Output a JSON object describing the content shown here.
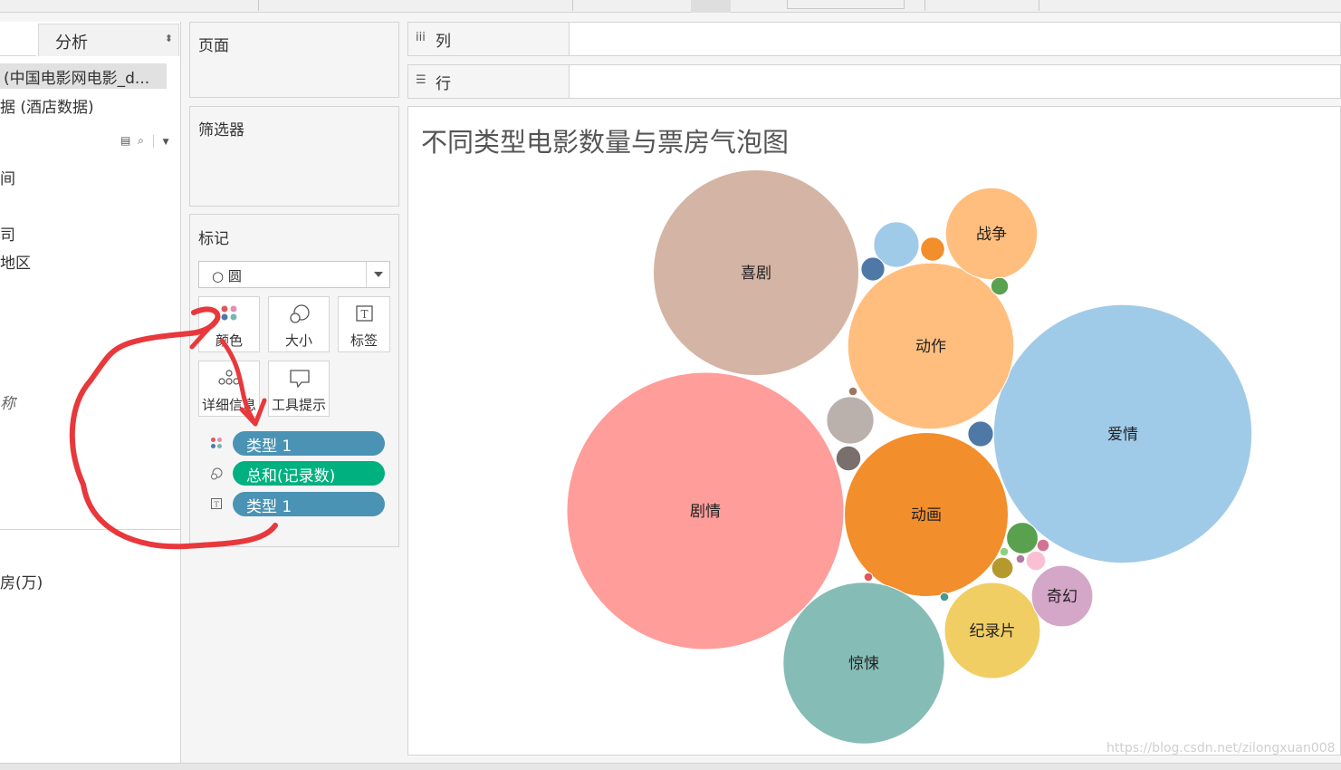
{
  "data_pane": {
    "analysis_tab": "分析",
    "datasources": [
      "(中国电影网电影_d...",
      "据 (酒店数据)"
    ],
    "fields": [
      "间",
      "司",
      "地区",
      "称",
      "房(万)"
    ]
  },
  "shelves": {
    "pages": "页面",
    "filters": "筛选器",
    "marks": "标记",
    "columns": "列",
    "rows": "行"
  },
  "marks": {
    "mark_type": "○ 圆",
    "buttons": {
      "color": "颜色",
      "size": "大小",
      "label": "标签",
      "detail": "详细信息",
      "tooltip": "工具提示"
    },
    "pills": [
      {
        "role": "color",
        "text": "类型   1",
        "bg": "#4a93b4"
      },
      {
        "role": "size",
        "text": "总和(记录数)",
        "bg": "#00b180"
      },
      {
        "role": "label",
        "text": "类型   1",
        "bg": "#4a93b4"
      }
    ]
  },
  "view": {
    "title": "不同类型电影数量与票房气泡图",
    "watermark": "https://blog.csdn.net/zilongxuan008"
  },
  "colors": {
    "pill_blue": "#4a93b4",
    "pill_green": "#00b180",
    "annotation_red": "#e8383c"
  },
  "chart_data": {
    "type": "bubble",
    "title": "不同类型电影数量与票房气泡图",
    "size_measure": "总和(记录数)",
    "color_dimension": "类型   1",
    "label_dimension": "类型   1",
    "bubbles": [
      {
        "label": "剧情",
        "relative_size": 1.0,
        "color": "#ff9d9a"
      },
      {
        "label": "爱情",
        "relative_size": 0.87,
        "color": "#a0cbe8"
      },
      {
        "label": "喜剧",
        "relative_size": 0.55,
        "color": "#d4b4a4"
      },
      {
        "label": "动作",
        "relative_size": 0.36,
        "color": "#ffbe7d"
      },
      {
        "label": "动画",
        "relative_size": 0.35,
        "color": "#f28e2b"
      },
      {
        "label": "惊悚",
        "relative_size": 0.34,
        "color": "#86bcb6"
      },
      {
        "label": "战争",
        "relative_size": 0.11,
        "color": "#ffbe7d"
      },
      {
        "label": "纪录片",
        "relative_size": 0.12,
        "color": "#f1ce63"
      },
      {
        "label": "奇幻",
        "relative_size": 0.049,
        "color": "#d4a6c8"
      },
      {
        "label": "",
        "relative_size": 0.029,
        "color": "#bab0ac"
      },
      {
        "label": "",
        "relative_size": 0.027,
        "color": "#a0cbe8"
      },
      {
        "label": "",
        "relative_size": 0.013,
        "color": "#59a14f"
      },
      {
        "label": "",
        "relative_size": 0.0085,
        "color": "#4e79a7"
      },
      {
        "label": "",
        "relative_size": 0.008,
        "color": "#79706e"
      },
      {
        "label": "",
        "relative_size": 0.0075,
        "color": "#f28e2b"
      },
      {
        "label": "",
        "relative_size": 0.0073,
        "color": "#4e79a7"
      },
      {
        "label": "",
        "relative_size": 0.006,
        "color": "#b6992d"
      },
      {
        "label": "",
        "relative_size": 0.005,
        "color": "#fabfd2"
      },
      {
        "label": "",
        "relative_size": 0.004,
        "color": "#59a14f"
      },
      {
        "label": "",
        "relative_size": 0.002,
        "color": "#d37295"
      },
      {
        "label": "",
        "relative_size": 0.001,
        "color": "#9d7660"
      },
      {
        "label": "",
        "relative_size": 0.001,
        "color": "#e15759"
      },
      {
        "label": "",
        "relative_size": 0.001,
        "color": "#499894"
      },
      {
        "label": "",
        "relative_size": 0.001,
        "color": "#8cd17d"
      },
      {
        "label": "",
        "relative_size": 0.001,
        "color": "#b07aa1"
      }
    ]
  }
}
